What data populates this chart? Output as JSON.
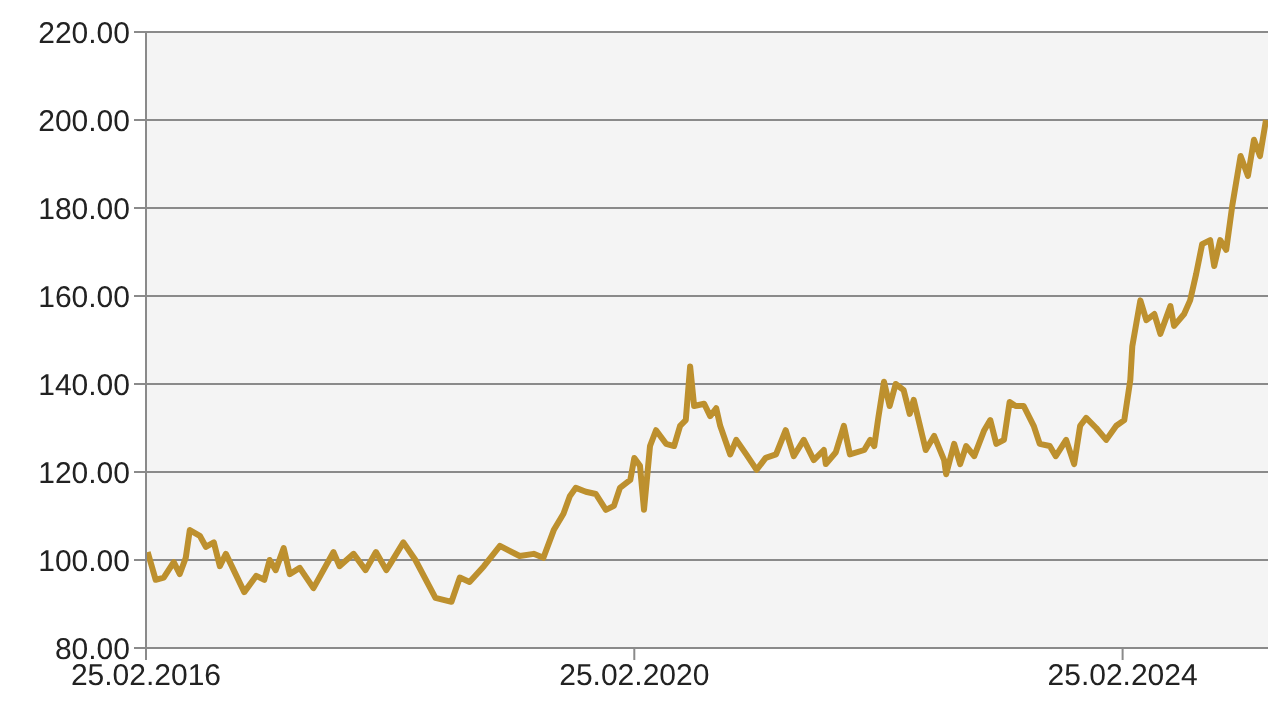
{
  "chart_data": {
    "type": "line",
    "x": [
      "2016-03-01",
      "2016-03-25",
      "2016-04-18",
      "2016-05-18",
      "2016-06-05",
      "2016-06-23",
      "2016-07-05",
      "2016-08-04",
      "2016-08-22",
      "2016-09-15",
      "2016-10-03",
      "2016-10-21",
      "2016-12-15",
      "2017-01-20",
      "2017-02-13",
      "2017-03-01",
      "2017-03-19",
      "2017-04-12",
      "2017-04-30",
      "2017-05-30",
      "2017-07-10",
      "2017-09-08",
      "2017-09-26",
      "2017-11-07",
      "2017-12-13",
      "2018-01-13",
      "2018-02-13",
      "2018-02-24",
      "2018-04-05",
      "2018-05-11",
      "2018-07-10",
      "2018-08-27",
      "2018-09-21",
      "2018-10-20",
      "2018-12-02",
      "2019-01-19",
      "2019-03-19",
      "2019-04-30",
      "2019-05-29",
      "2019-06-29",
      "2019-07-28",
      "2019-08-16",
      "2019-09-03",
      "2019-10-03",
      "2019-11-02",
      "2019-12-02",
      "2019-12-26",
      "2020-01-13",
      "2020-02-13",
      "2020-02-25",
      "2020-03-13",
      "2020-03-25",
      "2020-04-12",
      "2020-04-30",
      "2020-05-30",
      "2020-06-23",
      "2020-07-11",
      "2020-07-28",
      "2020-08-10",
      "2020-08-22",
      "2020-09-21",
      "2020-10-09",
      "2020-10-27",
      "2020-11-08",
      "2020-12-08",
      "2020-12-26",
      "2021-01-25",
      "2021-02-25",
      "2021-03-24",
      "2021-04-24",
      "2021-05-23",
      "2021-06-16",
      "2021-07-16",
      "2021-08-15",
      "2021-09-14",
      "2021-09-20",
      "2021-10-20",
      "2021-11-13",
      "2021-12-01",
      "2022-01-13",
      "2022-01-31",
      "2022-02-12",
      "2022-02-24",
      "2022-03-13",
      "2022-03-30",
      "2022-04-17",
      "2022-05-11",
      "2022-05-29",
      "2022-06-10",
      "2022-07-16",
      "2022-08-10",
      "2022-09-09",
      "2022-09-15",
      "2022-10-09",
      "2022-10-27",
      "2022-11-14",
      "2022-12-08",
      "2023-01-07",
      "2023-01-25",
      "2023-02-12",
      "2023-03-07",
      "2023-03-24",
      "2023-04-11",
      "2023-05-05",
      "2023-06-04",
      "2023-06-22",
      "2023-07-22",
      "2023-08-09",
      "2023-09-09",
      "2023-10-03",
      "2023-10-21",
      "2023-11-08",
      "2023-12-08",
      "2024-01-07",
      "2024-02-06",
      "2024-03-01",
      "2024-03-19",
      "2024-03-25",
      "2024-04-18",
      "2024-05-06",
      "2024-05-30",
      "2024-06-17",
      "2024-07-17",
      "2024-07-28",
      "2024-08-27",
      "2024-09-14",
      "2024-10-02",
      "2024-10-20",
      "2024-11-13",
      "2024-11-25",
      "2024-12-13",
      "2024-12-31",
      "2025-01-18",
      "2025-02-12",
      "2025-03-06",
      "2025-03-24",
      "2025-04-11",
      "2025-04-29"
    ],
    "series": [
      {
        "color": "#bd902e",
        "values": [
          101.8,
          95.5,
          96,
          99.5,
          96.8,
          100.5,
          106.8,
          105.5,
          103,
          104,
          98.6,
          101.4,
          92.7,
          96.4,
          95.5,
          100,
          97.7,
          102.7,
          96.8,
          98.2,
          93.6,
          101.8,
          98.6,
          101.4,
          97.7,
          101.8,
          97.7,
          99,
          104,
          100,
          91.4,
          90.5,
          96,
          95,
          98.6,
          103.2,
          100.9,
          101.4,
          100.5,
          106.8,
          110.5,
          114.5,
          116.4,
          115.5,
          115,
          111.4,
          112.3,
          116.4,
          118.2,
          123.2,
          121.4,
          111.4,
          125.9,
          129.5,
          126.4,
          125.9,
          130.5,
          131.8,
          144,
          135,
          135.5,
          132.7,
          134.5,
          130.5,
          124,
          127.3,
          124,
          120.5,
          123.2,
          124,
          129.5,
          123.6,
          127.3,
          122.7,
          125,
          121.8,
          124.5,
          130.5,
          124,
          125,
          127.3,
          125.9,
          132.3,
          140.5,
          135,
          140,
          138.6,
          133.2,
          136.4,
          125,
          128.2,
          122.7,
          119.5,
          126.4,
          121.8,
          125.9,
          123.6,
          129.5,
          131.8,
          126.4,
          127.3,
          135.9,
          135,
          135,
          130.5,
          126.4,
          125.9,
          123.6,
          127.3,
          121.8,
          130.5,
          132.3,
          130,
          127.3,
          130.5,
          131.8,
          140.9,
          148.6,
          159,
          154.5,
          155.9,
          151.4,
          157.7,
          153.2,
          155.9,
          159,
          165,
          171.8,
          172.7,
          166.8,
          172.7,
          170.5,
          180.5,
          191.8,
          187.3,
          195.5,
          191.8,
          200
        ]
      }
    ],
    "xlim": [
      "2016-02-25",
      "2025-05-05"
    ],
    "xticks": [
      {
        "value": "2016-02-25",
        "label": "25.02.2016"
      },
      {
        "value": "2020-02-25",
        "label": "25.02.2020"
      },
      {
        "value": "2024-02-25",
        "label": "25.02.2024"
      }
    ],
    "ylim": [
      80,
      220
    ],
    "yticks": [
      {
        "value": 80,
        "label": "80.00"
      },
      {
        "value": 100,
        "label": "100.00"
      },
      {
        "value": 120,
        "label": "120.00"
      },
      {
        "value": 140,
        "label": "140.00"
      },
      {
        "value": 160,
        "label": "160.00"
      },
      {
        "value": 180,
        "label": "180.00"
      },
      {
        "value": 200,
        "label": "200.00"
      },
      {
        "value": 220,
        "label": "220.00"
      }
    ],
    "grid": "y",
    "legend": false,
    "marker": "none",
    "line_style": "solid"
  }
}
